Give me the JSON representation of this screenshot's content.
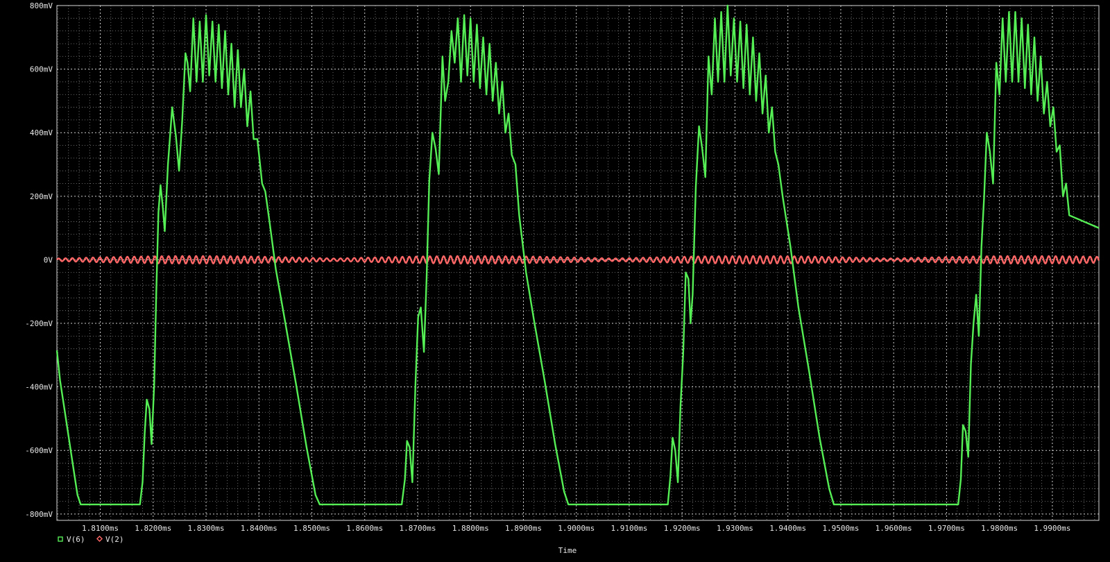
{
  "chart_data": {
    "type": "line",
    "xlabel": "Time",
    "ylabel": "",
    "xlim_ms": [
      1.8018,
      1.9988
    ],
    "ylim_mV": [
      -820,
      800
    ],
    "y_ticks": [
      {
        "value": 800,
        "label": "800mV"
      },
      {
        "value": 600,
        "label": "600mV"
      },
      {
        "value": 400,
        "label": "400mV"
      },
      {
        "value": 200,
        "label": "200mV"
      },
      {
        "value": 0,
        "label": "0V"
      },
      {
        "value": -200,
        "label": "-200mV"
      },
      {
        "value": -400,
        "label": "-400mV"
      },
      {
        "value": -600,
        "label": "-600mV"
      },
      {
        "value": -800,
        "label": "-800mV"
      }
    ],
    "x_ticks": [
      {
        "value": 1.81,
        "label": "1.8100ms"
      },
      {
        "value": 1.82,
        "label": "1.8200ms"
      },
      {
        "value": 1.83,
        "label": "1.8300ms"
      },
      {
        "value": 1.84,
        "label": "1.8400ms"
      },
      {
        "value": 1.85,
        "label": "1.8500ms"
      },
      {
        "value": 1.86,
        "label": "1.8600ms"
      },
      {
        "value": 1.87,
        "label": "1.8700ms"
      },
      {
        "value": 1.88,
        "label": "1.8800ms"
      },
      {
        "value": 1.89,
        "label": "1.8900ms"
      },
      {
        "value": 1.9,
        "label": "1.9000ms"
      },
      {
        "value": 1.91,
        "label": "1.9100ms"
      },
      {
        "value": 1.92,
        "label": "1.9200ms"
      },
      {
        "value": 1.93,
        "label": "1.9300ms"
      },
      {
        "value": 1.94,
        "label": "1.9400ms"
      },
      {
        "value": 1.95,
        "label": "1.9500ms"
      },
      {
        "value": 1.96,
        "label": "1.9600ms"
      },
      {
        "value": 1.97,
        "label": "1.9700ms"
      },
      {
        "value": 1.98,
        "label": "1.9800ms"
      },
      {
        "value": 1.99,
        "label": "1.9900ms"
      }
    ],
    "grid": true,
    "legend_position": "bottom-left",
    "series": [
      {
        "name": "V(6)",
        "color": "#55ee55",
        "marker": "square",
        "points": [
          [
            1.8018,
            -285
          ],
          [
            1.8024,
            -380
          ],
          [
            1.8035,
            -500
          ],
          [
            1.8046,
            -620
          ],
          [
            1.8057,
            -740
          ],
          [
            1.8063,
            -770
          ],
          [
            1.812,
            -770
          ],
          [
            1.8175,
            -770
          ],
          [
            1.818,
            -700
          ],
          [
            1.8184,
            -545
          ],
          [
            1.8188,
            -440
          ],
          [
            1.8193,
            -470
          ],
          [
            1.8197,
            -580
          ],
          [
            1.8202,
            -390
          ],
          [
            1.8206,
            -100
          ],
          [
            1.821,
            150
          ],
          [
            1.8214,
            235
          ],
          [
            1.8218,
            170
          ],
          [
            1.8222,
            90
          ],
          [
            1.8228,
            300
          ],
          [
            1.8236,
            480
          ],
          [
            1.8243,
            390
          ],
          [
            1.8249,
            280
          ],
          [
            1.8255,
            440
          ],
          [
            1.8261,
            650
          ],
          [
            1.8265,
            620
          ],
          [
            1.827,
            530
          ],
          [
            1.8276,
            760
          ],
          [
            1.8282,
            560
          ],
          [
            1.8288,
            750
          ],
          [
            1.8294,
            560
          ],
          [
            1.83,
            770
          ],
          [
            1.8306,
            580
          ],
          [
            1.8312,
            750
          ],
          [
            1.8318,
            560
          ],
          [
            1.8324,
            740
          ],
          [
            1.833,
            540
          ],
          [
            1.8336,
            720
          ],
          [
            1.8342,
            520
          ],
          [
            1.8348,
            680
          ],
          [
            1.8354,
            480
          ],
          [
            1.836,
            660
          ],
          [
            1.8366,
            480
          ],
          [
            1.8372,
            600
          ],
          [
            1.8378,
            420
          ],
          [
            1.8384,
            530
          ],
          [
            1.839,
            380
          ],
          [
            1.8397,
            380
          ],
          [
            1.8406,
            240
          ],
          [
            1.8412,
            215
          ],
          [
            1.842,
            120
          ],
          [
            1.8432,
            -30
          ],
          [
            1.845,
            -200
          ],
          [
            1.847,
            -390
          ],
          [
            1.849,
            -590
          ],
          [
            1.8507,
            -740
          ],
          [
            1.8515,
            -770
          ],
          [
            1.86,
            -770
          ],
          [
            1.867,
            -770
          ],
          [
            1.8676,
            -690
          ],
          [
            1.868,
            -570
          ],
          [
            1.8685,
            -590
          ],
          [
            1.869,
            -700
          ],
          [
            1.8696,
            -390
          ],
          [
            1.8701,
            -180
          ],
          [
            1.8706,
            -150
          ],
          [
            1.8712,
            -290
          ],
          [
            1.8717,
            -60
          ],
          [
            1.8722,
            250
          ],
          [
            1.8728,
            400
          ],
          [
            1.8734,
            350
          ],
          [
            1.874,
            270
          ],
          [
            1.8747,
            640
          ],
          [
            1.8752,
            500
          ],
          [
            1.8758,
            560
          ],
          [
            1.8764,
            720
          ],
          [
            1.877,
            620
          ],
          [
            1.8776,
            760
          ],
          [
            1.8782,
            560
          ],
          [
            1.8788,
            770
          ],
          [
            1.8794,
            580
          ],
          [
            1.88,
            760
          ],
          [
            1.8806,
            560
          ],
          [
            1.8812,
            740
          ],
          [
            1.8818,
            540
          ],
          [
            1.8824,
            700
          ],
          [
            1.883,
            520
          ],
          [
            1.8836,
            680
          ],
          [
            1.8842,
            500
          ],
          [
            1.8848,
            620
          ],
          [
            1.8854,
            460
          ],
          [
            1.886,
            560
          ],
          [
            1.8866,
            400
          ],
          [
            1.8872,
            460
          ],
          [
            1.8878,
            330
          ],
          [
            1.8885,
            300
          ],
          [
            1.8892,
            140
          ],
          [
            1.8905,
            -40
          ],
          [
            1.892,
            -190
          ],
          [
            1.894,
            -380
          ],
          [
            1.896,
            -580
          ],
          [
            1.8977,
            -730
          ],
          [
            1.8985,
            -770
          ],
          [
            1.905,
            -770
          ],
          [
            1.9173,
            -770
          ],
          [
            1.9178,
            -680
          ],
          [
            1.9182,
            -560
          ],
          [
            1.9187,
            -600
          ],
          [
            1.9192,
            -700
          ],
          [
            1.9197,
            -460
          ],
          [
            1.9202,
            -300
          ],
          [
            1.9207,
            -40
          ],
          [
            1.9212,
            -60
          ],
          [
            1.9216,
            -200
          ],
          [
            1.922,
            -110
          ],
          [
            1.9226,
            230
          ],
          [
            1.9232,
            420
          ],
          [
            1.9238,
            350
          ],
          [
            1.9244,
            260
          ],
          [
            1.925,
            640
          ],
          [
            1.9256,
            520
          ],
          [
            1.9262,
            760
          ],
          [
            1.9268,
            560
          ],
          [
            1.9274,
            780
          ],
          [
            1.928,
            560
          ],
          [
            1.9286,
            800
          ],
          [
            1.9292,
            580
          ],
          [
            1.9298,
            760
          ],
          [
            1.9304,
            560
          ],
          [
            1.931,
            750
          ],
          [
            1.9316,
            540
          ],
          [
            1.9322,
            740
          ],
          [
            1.9328,
            520
          ],
          [
            1.9334,
            700
          ],
          [
            1.934,
            500
          ],
          [
            1.9346,
            650
          ],
          [
            1.9352,
            460
          ],
          [
            1.9358,
            580
          ],
          [
            1.9364,
            400
          ],
          [
            1.937,
            480
          ],
          [
            1.9376,
            340
          ],
          [
            1.9382,
            300
          ],
          [
            1.939,
            200
          ],
          [
            1.9405,
            40
          ],
          [
            1.942,
            -150
          ],
          [
            1.944,
            -350
          ],
          [
            1.946,
            -560
          ],
          [
            1.9478,
            -720
          ],
          [
            1.9487,
            -770
          ],
          [
            1.96,
            -770
          ],
          [
            1.9722,
            -770
          ],
          [
            1.9727,
            -690
          ],
          [
            1.9731,
            -520
          ],
          [
            1.9736,
            -540
          ],
          [
            1.9741,
            -620
          ],
          [
            1.9746,
            -330
          ],
          [
            1.9751,
            -200
          ],
          [
            1.9756,
            -110
          ],
          [
            1.9761,
            -240
          ],
          [
            1.9766,
            40
          ],
          [
            1.9771,
            200
          ],
          [
            1.9776,
            400
          ],
          [
            1.9782,
            340
          ],
          [
            1.9788,
            240
          ],
          [
            1.9794,
            620
          ],
          [
            1.98,
            520
          ],
          [
            1.9806,
            760
          ],
          [
            1.9812,
            560
          ],
          [
            1.9818,
            780
          ],
          [
            1.9824,
            560
          ],
          [
            1.983,
            780
          ],
          [
            1.9836,
            560
          ],
          [
            1.9842,
            760
          ],
          [
            1.9848,
            540
          ],
          [
            1.9854,
            740
          ],
          [
            1.986,
            520
          ],
          [
            1.9866,
            700
          ],
          [
            1.9872,
            500
          ],
          [
            1.9878,
            640
          ],
          [
            1.9884,
            460
          ],
          [
            1.989,
            560
          ],
          [
            1.9896,
            420
          ],
          [
            1.9902,
            480
          ],
          [
            1.9908,
            340
          ],
          [
            1.9914,
            360
          ],
          [
            1.992,
            200
          ],
          [
            1.9926,
            240
          ],
          [
            1.9932,
            140
          ],
          [
            1.9988,
            100
          ]
        ]
      },
      {
        "name": "V(2)",
        "color": "#ff6666",
        "marker": "diamond",
        "baseline_mV": 0,
        "ripple_amplitude_mV": 12
      }
    ]
  }
}
